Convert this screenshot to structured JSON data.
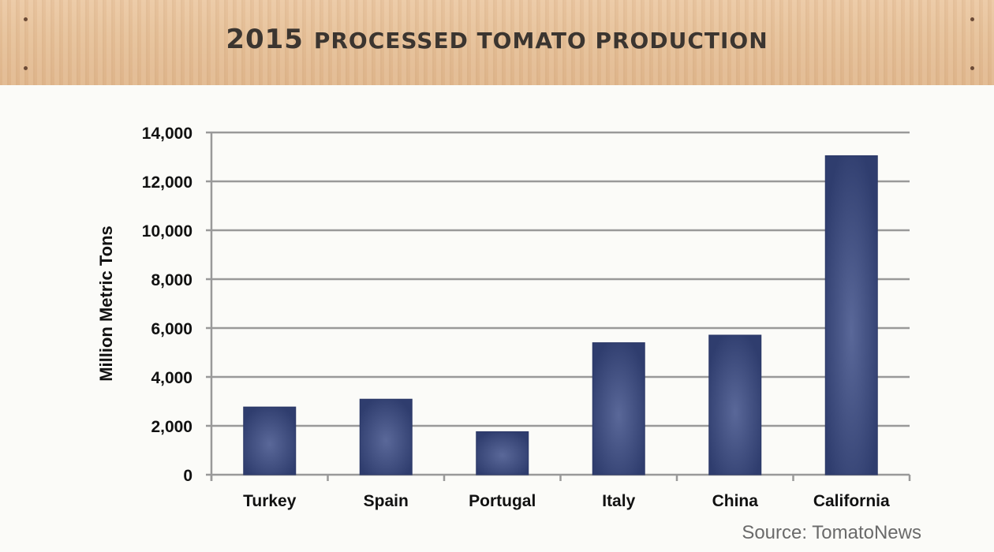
{
  "chart_data": {
    "type": "bar",
    "title_year": "2015",
    "title_rest": "PROCESSED TOMATO PRODUCTION",
    "xlabel": "",
    "ylabel": "Million Metric Tons",
    "categories": [
      "Turkey",
      "Spain",
      "Portugal",
      "Italy",
      "China",
      "California"
    ],
    "values": [
      2770,
      3090,
      1760,
      5400,
      5710,
      13050
    ],
    "ylim": [
      0,
      14000
    ],
    "yticks": [
      0,
      2000,
      4000,
      6000,
      8000,
      10000,
      12000,
      14000
    ],
    "ytick_labels": [
      "0",
      "2,000",
      "4,000",
      "6,000",
      "8,000",
      "10,000",
      "12,000",
      "14,000"
    ],
    "grid": true,
    "bar_color": "#3a4a80",
    "source": "Source: TomatoNews"
  }
}
